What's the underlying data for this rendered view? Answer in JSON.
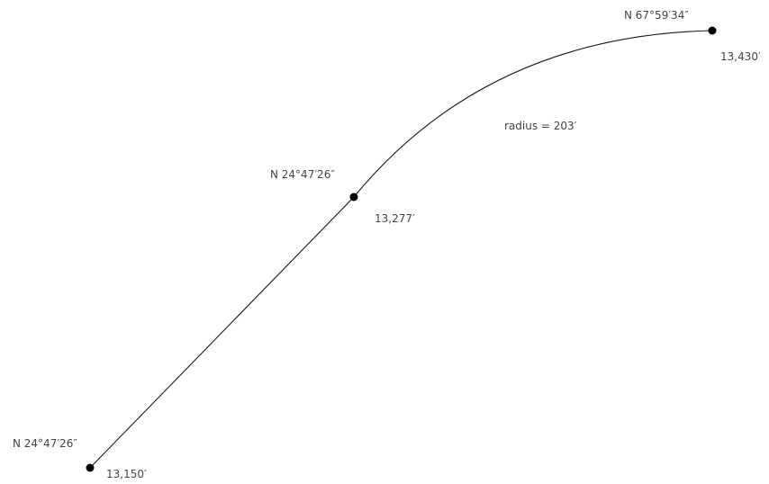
{
  "points": [
    {
      "bearing": "N 24°47′26″",
      "station": "13,150′"
    },
    {
      "bearing": "N 24°47′26″",
      "station": "13,277′"
    },
    {
      "bearing": "N 67°59′34″",
      "station": "13,430′"
    }
  ],
  "curve": {
    "radius_label": "radius = 203′"
  },
  "colors": {
    "line": "#1a1a1a",
    "text": "#444444",
    "point": "#000000"
  }
}
